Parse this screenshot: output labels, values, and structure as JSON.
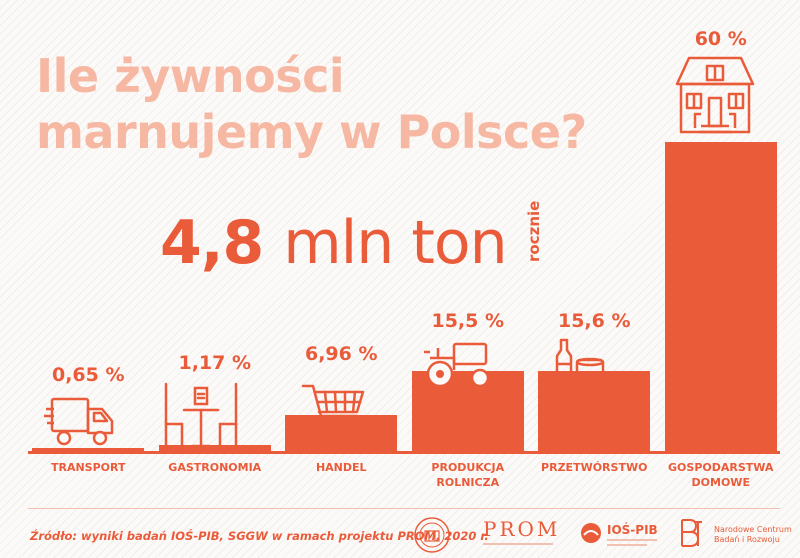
{
  "title_line1": "Ile żywności",
  "title_line2": "marnujemy w Polsce?",
  "total_value": "4,8",
  "total_unit": "mln ton",
  "total_period": "rocznie",
  "chart_data": {
    "type": "bar",
    "title": "Ile żywności marnujemy w Polsce?",
    "categories": [
      "TRANSPORT",
      "GASTRONOMIA",
      "HANDEL",
      "PRODUKCJA ROLNICZA",
      "PRZETWÓRSTWO",
      "GOSPODARSTWA DOMOWE"
    ],
    "values": [
      0.65,
      1.17,
      6.96,
      15.5,
      15.6,
      60
    ],
    "value_labels": [
      "0,65 %",
      "1,17 %",
      "6,96 %",
      "15,5 %",
      "15,6 %",
      "60 %"
    ],
    "category_lines": [
      [
        "TRANSPORT"
      ],
      [
        "GASTRONOMIA"
      ],
      [
        "HANDEL"
      ],
      [
        "PRODUKCJA",
        "ROLNICZA"
      ],
      [
        "PRZETWÓRSTWO"
      ],
      [
        "GOSPODARSTWA",
        "DOMOWE"
      ]
    ],
    "icons": [
      "truck-icon",
      "restaurant-table-icon",
      "shopping-cart-icon",
      "tractor-icon",
      "bottle-and-can-icon",
      "house-icon"
    ],
    "bar_color": "#ea5b3a",
    "unit": "%"
  },
  "source_text": "Źródło: wyniki badań IOŚ-PIB, SGGW w ramach projektu PROM, 2020 r.",
  "logos": {
    "prom_text": "PROM",
    "ios_text": "IOŚ-PIB",
    "ncbr_line1": "Narodowe Centrum",
    "ncbr_line2": "Badań i Rozwoju"
  },
  "colors": {
    "accent": "#ea5b3a",
    "title": "#f6b8a2",
    "background": "#fbfaf8"
  }
}
